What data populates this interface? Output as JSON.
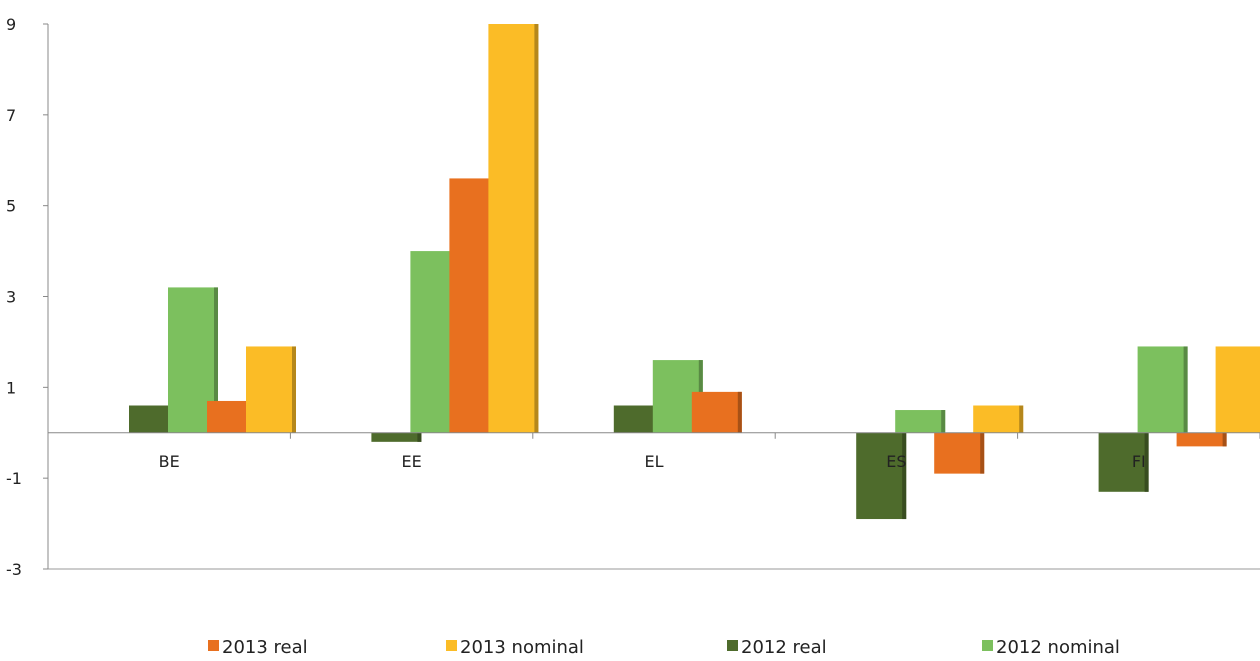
{
  "chart_data": {
    "type": "bar",
    "categories": [
      "BE",
      "EE",
      "EL",
      "ES",
      "FI"
    ],
    "series": [
      {
        "name": "2012 real",
        "color": "#4e6b2c",
        "values": [
          0.6,
          -0.2,
          0.6,
          -1.9,
          -1.3
        ]
      },
      {
        "name": "2012 nominal",
        "color": "#7cc05e",
        "values": [
          3.2,
          4.0,
          1.6,
          0.5,
          1.9
        ]
      },
      {
        "name": "2013 real",
        "color": "#e8701f",
        "values": [
          0.7,
          5.6,
          0.9,
          -0.9,
          -0.3
        ]
      },
      {
        "name": "2013 nominal",
        "color": "#fbbc26",
        "values": [
          1.9,
          9.0,
          null,
          0.6,
          1.9
        ]
      }
    ],
    "legend_order": [
      "2013 real",
      "2013 nominal",
      "2012 real",
      "2012 nominal"
    ],
    "legend_position": "bottom",
    "yticks": [
      9,
      7,
      5,
      3,
      1,
      -1,
      -3
    ],
    "ylim": [
      -3,
      9
    ],
    "title": "",
    "xlabel": "",
    "ylabel": "",
    "grid": false
  }
}
